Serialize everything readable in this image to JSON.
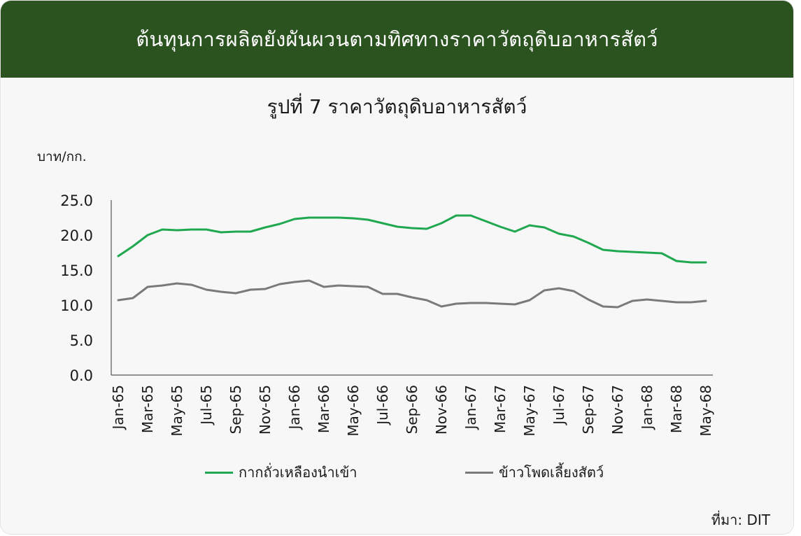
{
  "header": {
    "title": "ต้นทุนการผลิตยังผันผวนตามทิศทางราคาวัตถุดิบอาหารสัตว์"
  },
  "figure": {
    "title": "รูปที่ 7  ราคาวัตถุดิบอาหารสัตว์",
    "unit": "บาท/กก.",
    "source": "ที่มา: DIT"
  },
  "colors": {
    "header_bg": "#2b5320",
    "series_green": "#1fa84f",
    "series_gray": "#7a7a7a"
  },
  "chart_data": {
    "type": "line",
    "ylabel": "บาท/กก.",
    "ylim": [
      0,
      25
    ],
    "yticks": [
      "0.0",
      "5.0",
      "10.0",
      "15.0",
      "20.0",
      "25.0"
    ],
    "xticks": [
      "Jan-65",
      "Mar-65",
      "May-65",
      "Jul-65",
      "Sep-65",
      "Nov-65",
      "Jan-66",
      "Mar-66",
      "May-66",
      "Jul-66",
      "Sep-66",
      "Nov-66",
      "Jan-67",
      "Mar-67",
      "May-67",
      "Jul-67",
      "Sep-67",
      "Nov-67",
      "Jan-68",
      "Mar-68",
      "May-68"
    ],
    "x": [
      "Jan-65",
      "Feb-65",
      "Mar-65",
      "Apr-65",
      "May-65",
      "Jun-65",
      "Jul-65",
      "Aug-65",
      "Sep-65",
      "Oct-65",
      "Nov-65",
      "Dec-65",
      "Jan-66",
      "Feb-66",
      "Mar-66",
      "Apr-66",
      "May-66",
      "Jun-66",
      "Jul-66",
      "Aug-66",
      "Sep-66",
      "Oct-66",
      "Nov-66",
      "Dec-66",
      "Jan-67",
      "Feb-67",
      "Mar-67",
      "Apr-67",
      "May-67",
      "Jun-67",
      "Jul-67",
      "Aug-67",
      "Sep-67",
      "Oct-67",
      "Nov-67",
      "Dec-67",
      "Jan-68",
      "Feb-68",
      "Mar-68",
      "Apr-68",
      "May-68"
    ],
    "series": [
      {
        "name": "กากถั่วเหลืองนำเข้า",
        "color": "#1fa84f",
        "values": [
          17.0,
          18.4,
          20.0,
          20.8,
          20.7,
          20.8,
          20.8,
          20.4,
          20.5,
          20.5,
          21.1,
          21.6,
          22.3,
          22.5,
          22.5,
          22.5,
          22.4,
          22.2,
          21.7,
          21.2,
          21.0,
          20.9,
          21.7,
          22.8,
          22.8,
          22.0,
          21.2,
          20.5,
          21.4,
          21.1,
          20.2,
          19.8,
          18.9,
          17.9,
          17.7,
          17.6,
          17.5,
          17.4,
          16.3,
          16.1,
          16.1
        ]
      },
      {
        "name": "ข้าวโพดเลี้ยงสัตว์",
        "color": "#7a7a7a",
        "values": [
          10.7,
          11.0,
          12.6,
          12.8,
          13.1,
          12.9,
          12.2,
          11.9,
          11.7,
          12.2,
          12.3,
          13.0,
          13.3,
          13.5,
          12.6,
          12.8,
          12.7,
          12.6,
          11.6,
          11.6,
          11.1,
          10.7,
          9.8,
          10.2,
          10.3,
          10.3,
          10.2,
          10.1,
          10.7,
          12.1,
          12.4,
          12.0,
          10.8,
          9.8,
          9.7,
          10.6,
          10.8,
          10.6,
          10.4,
          10.4,
          10.6
        ]
      }
    ],
    "grid": false,
    "legend_position": "bottom"
  }
}
